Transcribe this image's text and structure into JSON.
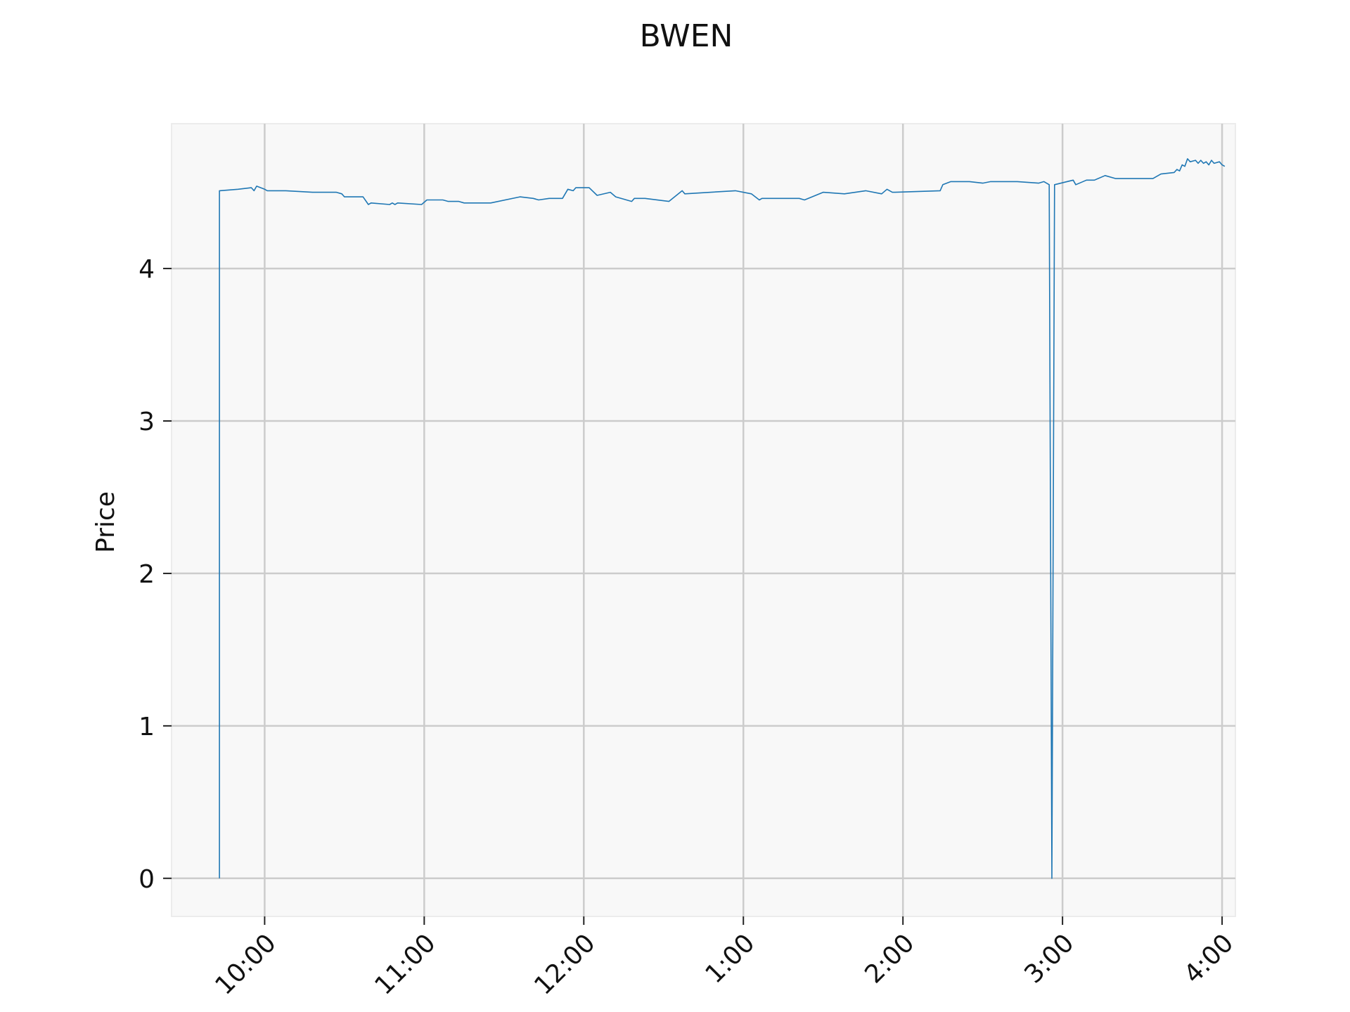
{
  "chart_data": {
    "type": "line",
    "title": "BWEN",
    "xlabel": "",
    "ylabel": "Price",
    "x_tick_labels": [
      "10:00",
      "11:00",
      "12:00",
      "1:00",
      "2:00",
      "3:00",
      "4:00"
    ],
    "y_tick_labels": [
      "0",
      "1",
      "2",
      "3",
      "4"
    ],
    "y_ticks": [
      0,
      1,
      2,
      3,
      4
    ],
    "xlim": [
      "09:25",
      "16:05"
    ],
    "ylim": [
      -0.25,
      4.95
    ],
    "grid": true,
    "legend": "none",
    "series": [
      {
        "color": "#1f77b4",
        "points": [
          [
            "09:43",
            0.0
          ],
          [
            "09:43",
            4.51
          ],
          [
            "09:50",
            4.52
          ],
          [
            "09:55",
            4.53
          ],
          [
            "09:56",
            4.51
          ],
          [
            "09:57",
            4.54
          ],
          [
            "10:00",
            4.52
          ],
          [
            "10:01",
            4.51
          ],
          [
            "10:08",
            4.51
          ],
          [
            "10:18",
            4.5
          ],
          [
            "10:27",
            4.5
          ],
          [
            "10:29",
            4.49
          ],
          [
            "10:30",
            4.47
          ],
          [
            "10:37",
            4.47
          ],
          [
            "10:39",
            4.42
          ],
          [
            "10:40",
            4.43
          ],
          [
            "10:47",
            4.42
          ],
          [
            "10:48",
            4.43
          ],
          [
            "10:49",
            4.42
          ],
          [
            "10:50",
            4.43
          ],
          [
            "10:59",
            4.42
          ],
          [
            "11:01",
            4.45
          ],
          [
            "11:07",
            4.45
          ],
          [
            "11:09",
            4.44
          ],
          [
            "11:13",
            4.44
          ],
          [
            "11:15",
            4.43
          ],
          [
            "11:17",
            4.43
          ],
          [
            "11:25",
            4.43
          ],
          [
            "11:36",
            4.47
          ],
          [
            "11:41",
            4.46
          ],
          [
            "11:43",
            4.45
          ],
          [
            "11:47",
            4.46
          ],
          [
            "11:48",
            4.46
          ],
          [
            "11:52",
            4.46
          ],
          [
            "11:54",
            4.52
          ],
          [
            "11:56",
            4.51
          ],
          [
            "11:57",
            4.53
          ],
          [
            "12:02",
            4.53
          ],
          [
            "12:05",
            4.48
          ],
          [
            "12:10",
            4.5
          ],
          [
            "12:12",
            4.47
          ],
          [
            "12:18",
            4.44
          ],
          [
            "12:19",
            4.46
          ],
          [
            "12:23",
            4.46
          ],
          [
            "12:32",
            4.44
          ],
          [
            "12:37",
            4.51
          ],
          [
            "12:38",
            4.49
          ],
          [
            "12:57",
            4.51
          ],
          [
            "13:03",
            4.49
          ],
          [
            "13:06",
            4.45
          ],
          [
            "13:07",
            4.46
          ],
          [
            "13:21",
            4.46
          ],
          [
            "13:23",
            4.45
          ],
          [
            "13:30",
            4.5
          ],
          [
            "13:38",
            4.49
          ],
          [
            "13:46",
            4.51
          ],
          [
            "13:52",
            4.49
          ],
          [
            "13:54",
            4.52
          ],
          [
            "13:56",
            4.5
          ],
          [
            "13:57",
            4.5
          ],
          [
            "14:14",
            4.51
          ],
          [
            "14:15",
            4.55
          ],
          [
            "14:18",
            4.57
          ],
          [
            "14:25",
            4.57
          ],
          [
            "14:30",
            4.56
          ],
          [
            "14:33",
            4.57
          ],
          [
            "14:43",
            4.57
          ],
          [
            "14:51",
            4.56
          ],
          [
            "14:53",
            4.57
          ],
          [
            "14:55",
            4.55
          ],
          [
            "14:56",
            0.0
          ],
          [
            "14:57",
            4.55
          ],
          [
            "15:04",
            4.58
          ],
          [
            "15:05",
            4.55
          ],
          [
            "15:09",
            4.58
          ],
          [
            "15:12",
            4.58
          ],
          [
            "15:16",
            4.61
          ],
          [
            "15:20",
            4.59
          ],
          [
            "15:34",
            4.59
          ],
          [
            "15:37",
            4.62
          ],
          [
            "15:42",
            4.63
          ],
          [
            "15:43",
            4.65
          ],
          [
            "15:44",
            4.64
          ],
          [
            "15:45",
            4.68
          ],
          [
            "15:46",
            4.67
          ],
          [
            "15:47",
            4.72
          ],
          [
            "15:48",
            4.7
          ],
          [
            "15:50",
            4.71
          ],
          [
            "15:51",
            4.69
          ],
          [
            "15:52",
            4.71
          ],
          [
            "15:53",
            4.69
          ],
          [
            "15:54",
            4.7
          ],
          [
            "15:55",
            4.68
          ],
          [
            "15:56",
            4.71
          ],
          [
            "15:57",
            4.69
          ],
          [
            "15:59",
            4.7
          ],
          [
            "16:00",
            4.68
          ],
          [
            "16:01",
            4.67
          ]
        ]
      }
    ]
  }
}
